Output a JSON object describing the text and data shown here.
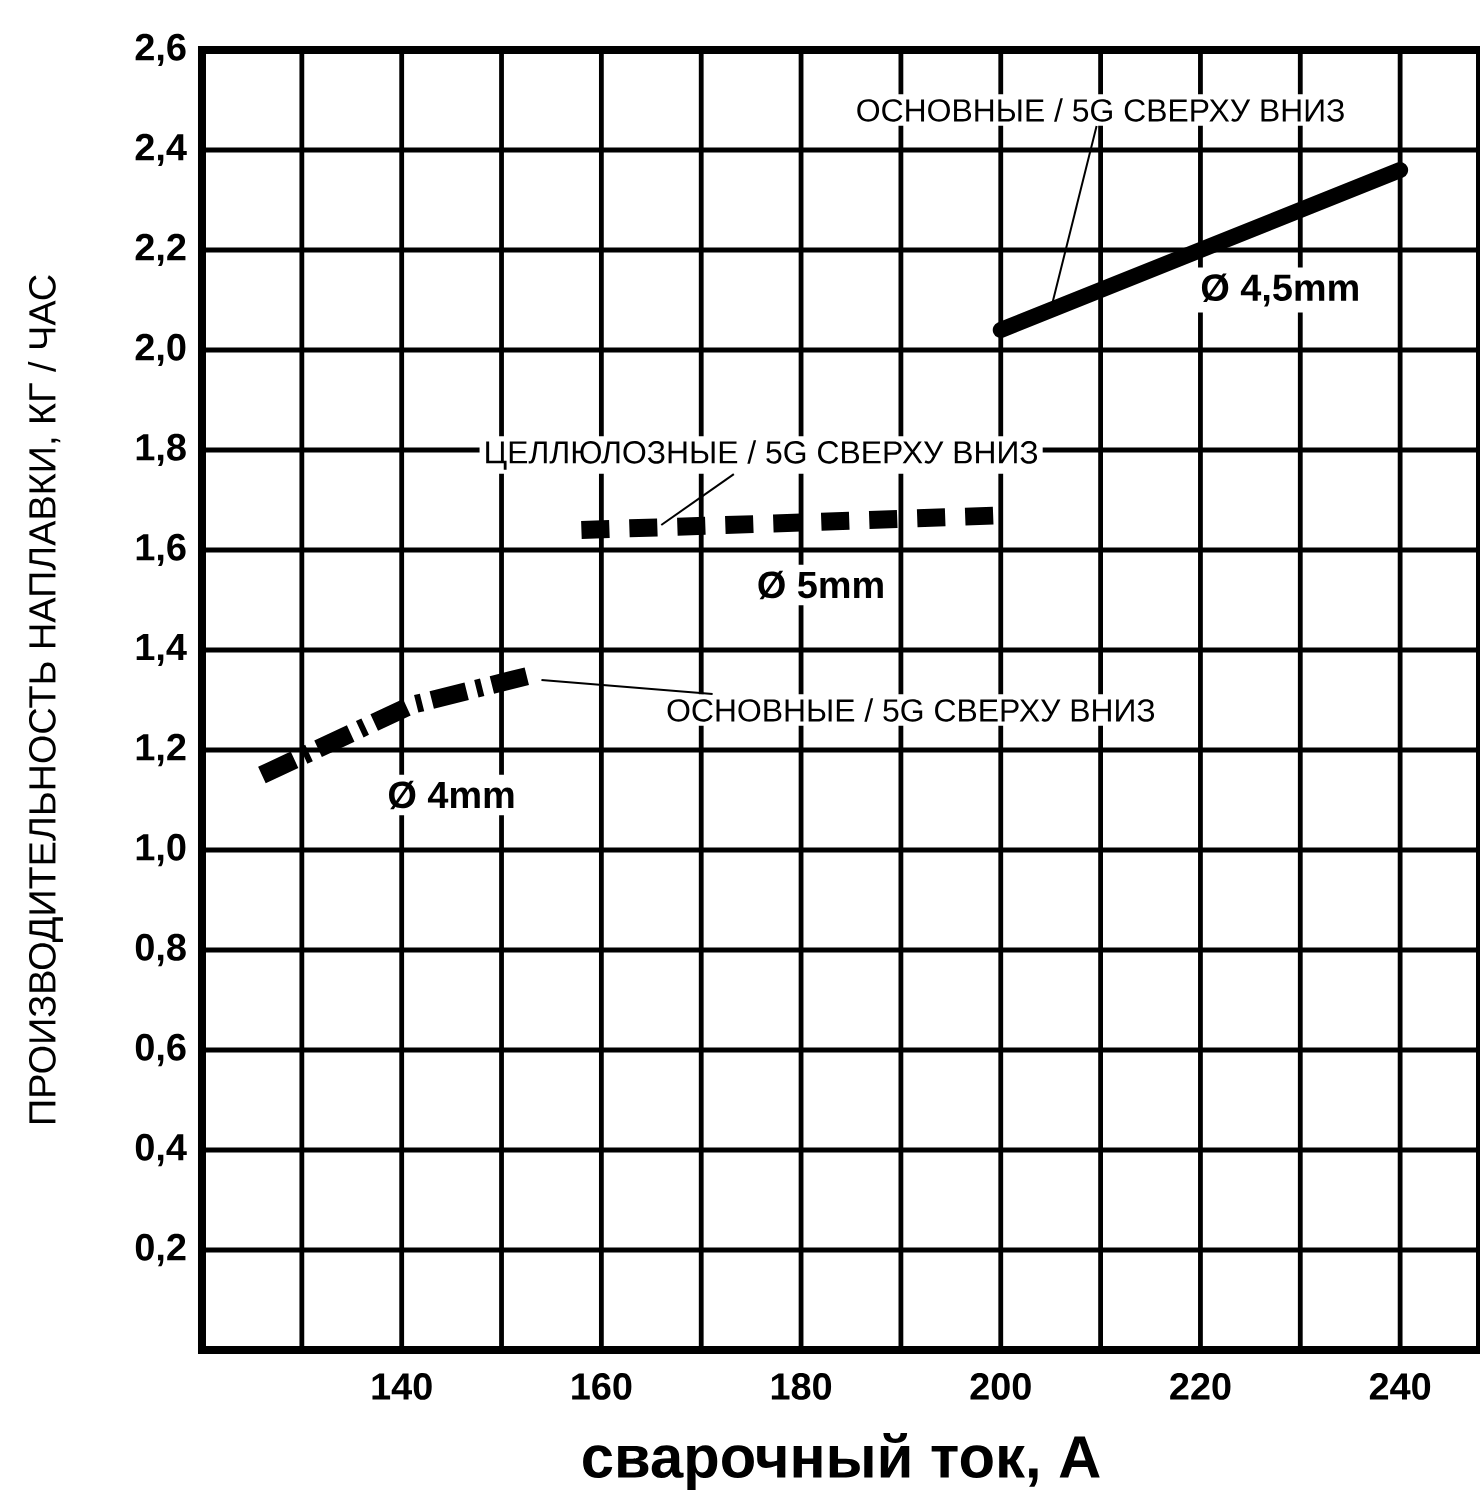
{
  "chart_data": {
    "type": "line",
    "xlabel": "сварочный ток, А",
    "ylabel": "ПРОИЗВОДИТЕЛЬНОСТЬ НАПЛАВКИ, КГ / ЧАС",
    "xlim": [
      120,
      248
    ],
    "ylim": [
      0,
      2.6
    ],
    "xticks": [
      {
        "value": 130,
        "label": null
      },
      140,
      {
        "value": 150,
        "label": null
      },
      160,
      {
        "value": 170,
        "label": null
      },
      180,
      {
        "value": 190,
        "label": null
      },
      200,
      {
        "value": 210,
        "label": null
      },
      220,
      {
        "value": 230,
        "label": null
      },
      240
    ],
    "yticks": [
      {
        "value": 0.2,
        "label": "0,2"
      },
      {
        "value": 0.4,
        "label": "0,4"
      },
      {
        "value": 0.6,
        "label": "0,6"
      },
      {
        "value": 0.8,
        "label": "0,8"
      },
      {
        "value": 1.0,
        "label": "1,0"
      },
      {
        "value": 1.2,
        "label": "1,2"
      },
      {
        "value": 1.4,
        "label": "1,4"
      },
      {
        "value": 1.6,
        "label": "1,6"
      },
      {
        "value": 1.8,
        "label": "1,8"
      },
      {
        "value": 2.0,
        "label": "2,0"
      },
      {
        "value": 2.2,
        "label": "2,2"
      },
      {
        "value": 2.4,
        "label": "2,4"
      },
      {
        "value": 2.6,
        "label": "2,6"
      }
    ],
    "grid": true,
    "series": [
      {
        "name": "Ø 4,5mm",
        "color": "#000000",
        "line_style": "solid",
        "x": [
          200,
          220,
          240
        ],
        "values": [
          2.04,
          2.2,
          2.36
        ]
      },
      {
        "name": "Ø 5mm",
        "color": "#000000",
        "line_style": "dashed",
        "x": [
          158,
          180,
          201
        ],
        "values": [
          1.64,
          1.655,
          1.67
        ]
      },
      {
        "name": "Ø 4mm",
        "color": "#000000",
        "line_style": "dashdot",
        "x": [
          126,
          141,
          153
        ],
        "values": [
          1.15,
          1.29,
          1.35
        ]
      }
    ],
    "annotations": [
      {
        "text": "ОСНОВНЫЕ / 5G СВЕРХУ ВНИЗ",
        "x": 205,
        "y": 2.08
      },
      {
        "text": "ЦЕЛЛЮЛОЗНЫЕ / 5G СВЕРХУ ВНИЗ",
        "x": 166,
        "y": 1.65
      },
      {
        "text": "ОСНОВНЫЕ / 5G СВЕРХУ ВНИЗ",
        "x": 154,
        "y": 1.34
      }
    ]
  }
}
